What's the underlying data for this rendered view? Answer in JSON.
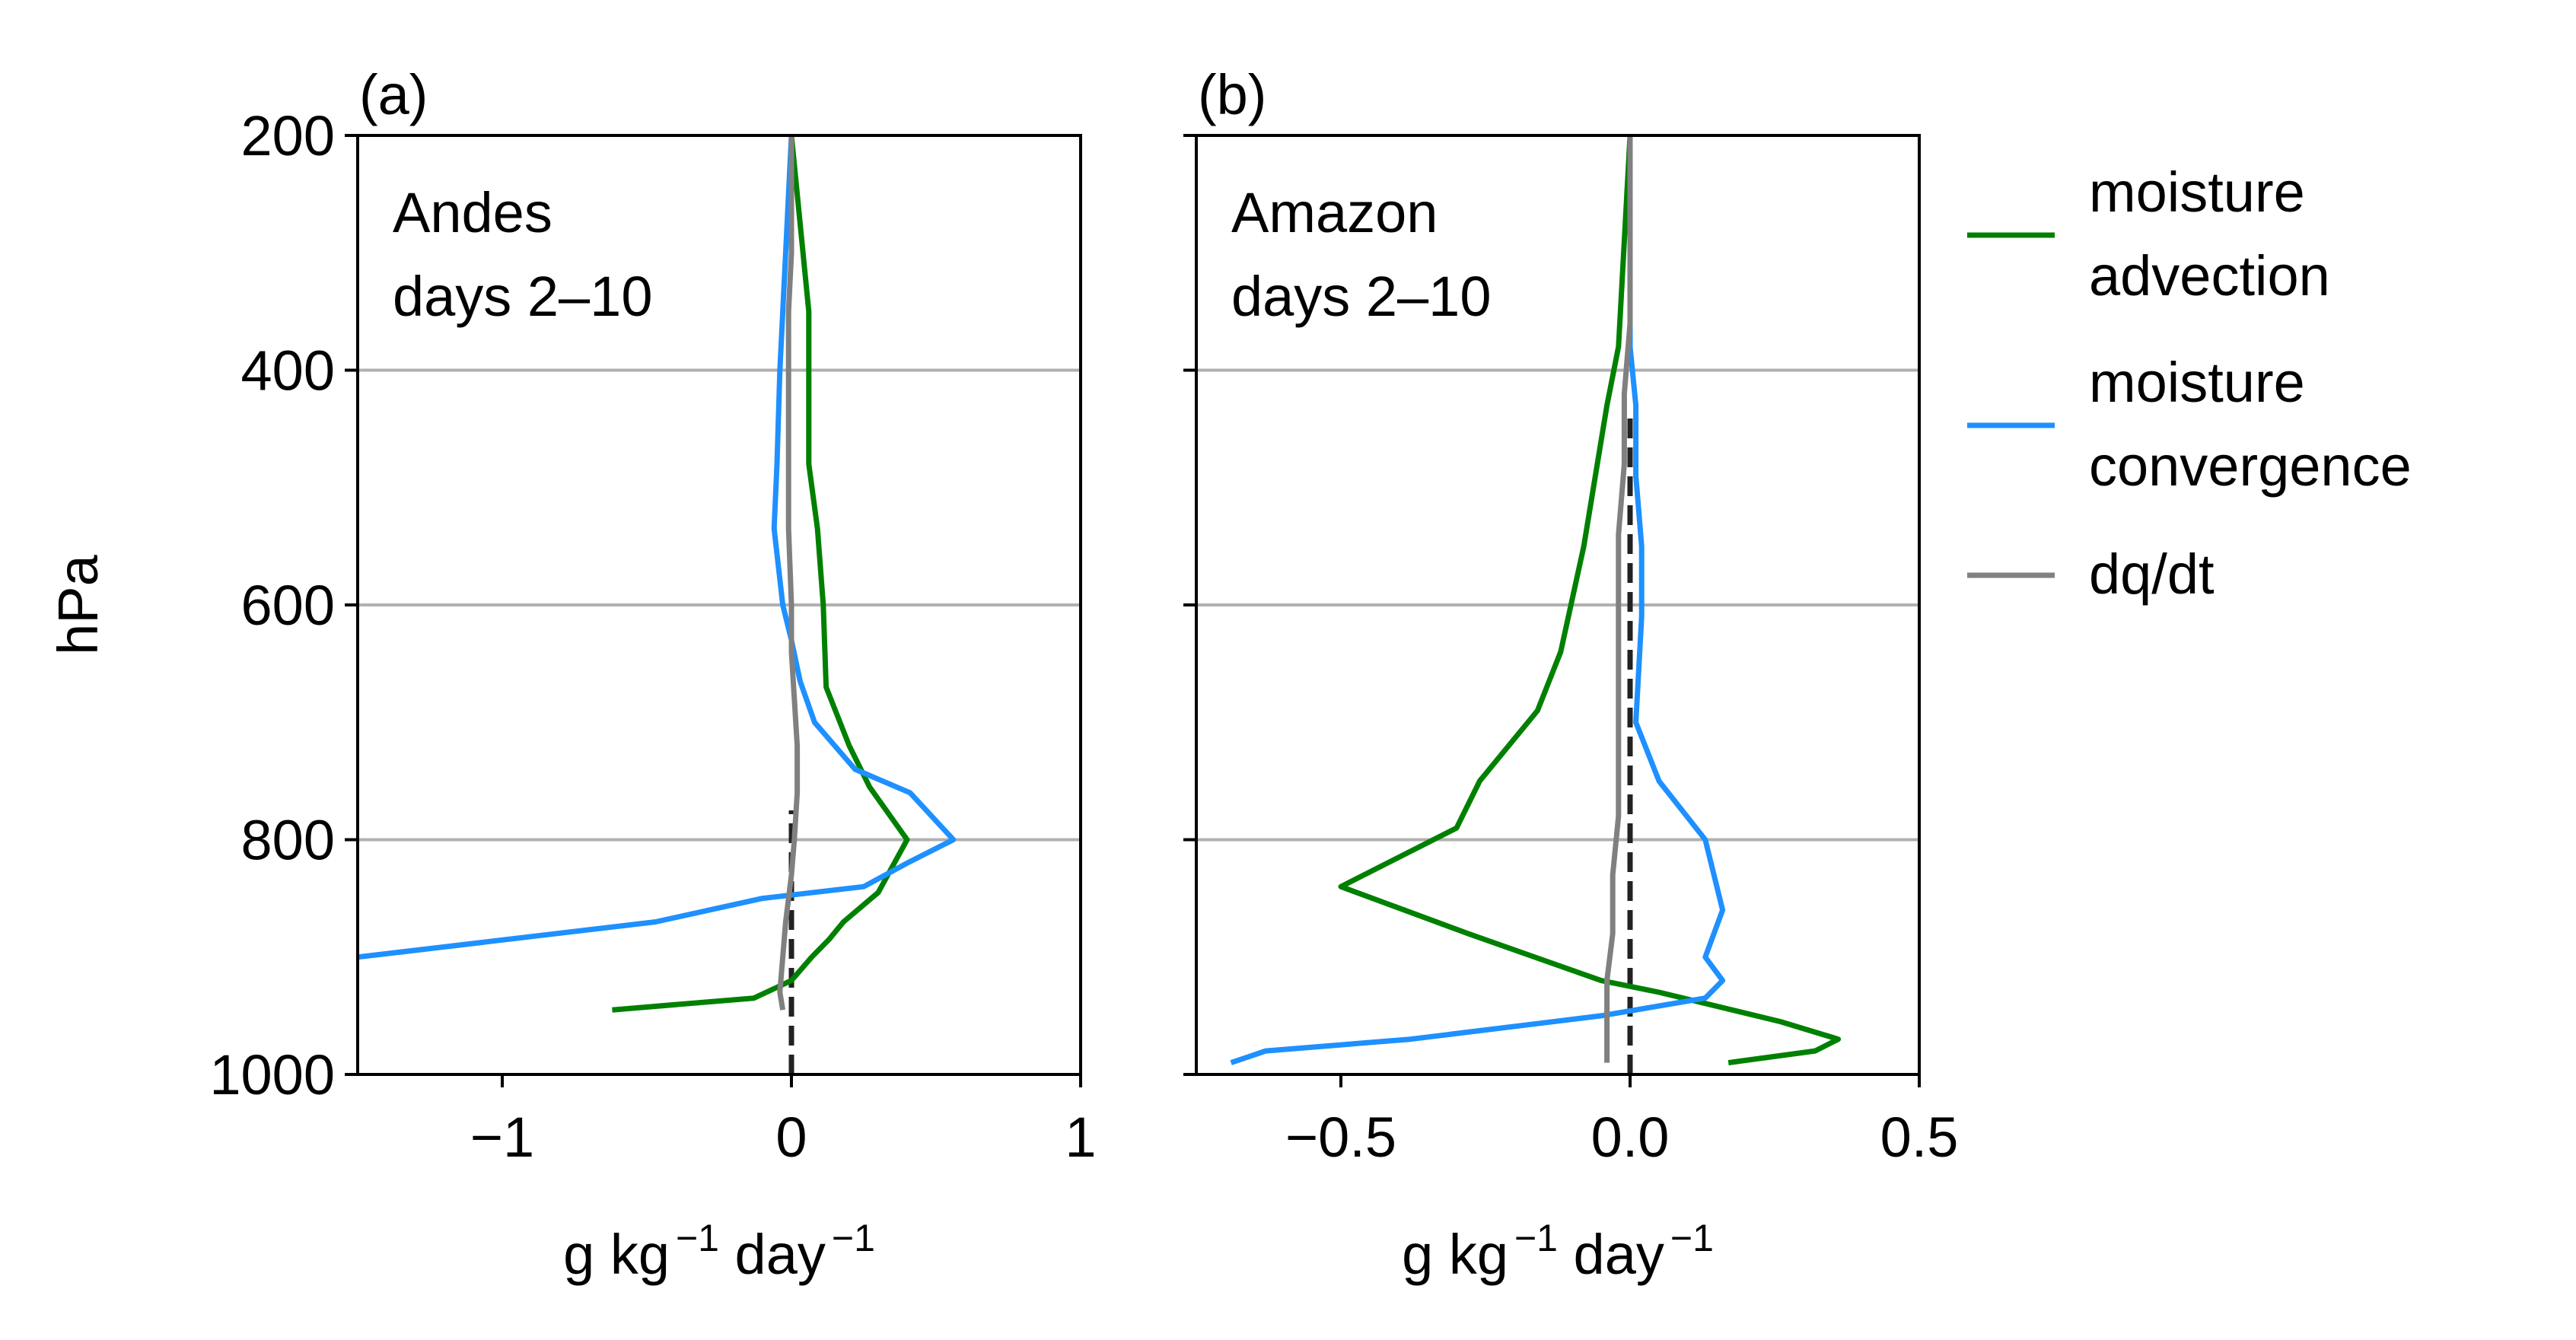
{
  "figure": {
    "legend": {
      "placement": "right",
      "entries": [
        {
          "lines": [
            "moisture",
            "advection"
          ],
          "color": "#008000"
        },
        {
          "lines": [
            "moisture",
            "convergence"
          ],
          "color": "#1e90ff"
        },
        {
          "lines": [
            "dq/dt"
          ],
          "color": "#808080"
        }
      ]
    }
  },
  "chart_data": [
    {
      "type": "line",
      "panel_label": "(a)",
      "annotation": [
        "Andes",
        "days 2–10"
      ],
      "xlabel": {
        "base": "g kg",
        "exp1": "−1",
        "mid": " day",
        "exp2": "−1"
      },
      "ylabel": "hPa",
      "xlim": [
        -1.5,
        1.0
      ],
      "ylim": [
        1000,
        200
      ],
      "y_inverted": true,
      "xticks": [
        -1,
        0,
        1
      ],
      "xtick_labels": [
        "−1",
        "0",
        "1"
      ],
      "yticks": [
        200,
        400,
        600,
        800,
        1000
      ],
      "ytick_labels": [
        "200",
        "400",
        "600",
        "800",
        "1000"
      ],
      "show_ytick_labels": true,
      "grid": "horizontal",
      "zero_line": {
        "x": 0,
        "from": 1000,
        "to": 775,
        "style": "dashed",
        "color": "#222222"
      },
      "series": [
        {
          "name": "moisture advection",
          "color": "#008000",
          "points": [
            [
              -0.62,
              945
            ],
            [
              -0.13,
              935
            ],
            [
              0.0,
              920
            ],
            [
              0.07,
              900
            ],
            [
              0.13,
              885
            ],
            [
              0.18,
              870
            ],
            [
              0.3,
              845
            ],
            [
              0.4,
              800
            ],
            [
              0.27,
              755
            ],
            [
              0.2,
              720
            ],
            [
              0.12,
              670
            ],
            [
              0.11,
              600
            ],
            [
              0.09,
              535
            ],
            [
              0.06,
              480
            ],
            [
              0.06,
              400
            ],
            [
              0.06,
              350
            ],
            [
              0.04,
              300
            ],
            [
              0.02,
              250
            ],
            [
              0.0,
              200
            ]
          ]
        },
        {
          "name": "moisture convergence",
          "color": "#1e90ff",
          "points": [
            [
              -1.5,
              900
            ],
            [
              -0.47,
              870
            ],
            [
              -0.1,
              850
            ],
            [
              0.25,
              840
            ],
            [
              0.4,
              820
            ],
            [
              0.56,
              800
            ],
            [
              0.41,
              760
            ],
            [
              0.22,
              740
            ],
            [
              0.08,
              700
            ],
            [
              0.03,
              665
            ],
            [
              0.0,
              630
            ],
            [
              -0.03,
              600
            ],
            [
              -0.06,
              535
            ],
            [
              -0.05,
              480
            ],
            [
              -0.04,
              400
            ],
            [
              -0.03,
              350
            ],
            [
              -0.02,
              300
            ],
            [
              -0.01,
              250
            ],
            [
              0.0,
              200
            ]
          ]
        },
        {
          "name": "dq/dt",
          "color": "#808080",
          "points": [
            [
              -0.03,
              945
            ],
            [
              -0.04,
              930
            ],
            [
              -0.03,
              900
            ],
            [
              -0.02,
              870
            ],
            [
              0.0,
              830
            ],
            [
              0.01,
              800
            ],
            [
              0.02,
              760
            ],
            [
              0.02,
              720
            ],
            [
              0.01,
              680
            ],
            [
              0.0,
              640
            ],
            [
              0.0,
              600
            ],
            [
              -0.01,
              535
            ],
            [
              -0.01,
              480
            ],
            [
              -0.01,
              400
            ],
            [
              -0.01,
              350
            ],
            [
              0.0,
              300
            ],
            [
              0.0,
              250
            ],
            [
              0.0,
              200
            ]
          ]
        }
      ]
    },
    {
      "type": "line",
      "panel_label": "(b)",
      "annotation": [
        "Amazon",
        "days 2–10"
      ],
      "xlabel": {
        "base": "g kg",
        "exp1": "−1",
        "mid": " day",
        "exp2": "−1"
      },
      "ylabel": "",
      "xlim": [
        -0.75,
        0.5
      ],
      "ylim": [
        1000,
        200
      ],
      "y_inverted": true,
      "xticks": [
        -0.5,
        0.0,
        0.5
      ],
      "xtick_labels": [
        "−0.5",
        "0.0",
        "0.5"
      ],
      "yticks": [
        200,
        400,
        600,
        800,
        1000
      ],
      "ytick_labels": [],
      "show_ytick_labels": false,
      "grid": "horizontal",
      "zero_line": {
        "x": 0,
        "from": 1000,
        "to": 440,
        "style": "dashed",
        "color": "#222222"
      },
      "series": [
        {
          "name": "moisture advection",
          "color": "#008000",
          "points": [
            [
              0.17,
              990
            ],
            [
              0.32,
              980
            ],
            [
              0.36,
              970
            ],
            [
              0.26,
              955
            ],
            [
              0.05,
              930
            ],
            [
              -0.05,
              920
            ],
            [
              -0.28,
              880
            ],
            [
              -0.5,
              840
            ],
            [
              -0.3,
              790
            ],
            [
              -0.26,
              750
            ],
            [
              -0.16,
              690
            ],
            [
              -0.12,
              640
            ],
            [
              -0.08,
              550
            ],
            [
              -0.06,
              490
            ],
            [
              -0.04,
              430
            ],
            [
              -0.02,
              380
            ],
            [
              0.0,
              200
            ]
          ]
        },
        {
          "name": "moisture convergence",
          "color": "#1e90ff",
          "points": [
            [
              -0.69,
              990
            ],
            [
              -0.63,
              980
            ],
            [
              -0.38,
              970
            ],
            [
              -0.05,
              950
            ],
            [
              0.13,
              935
            ],
            [
              0.16,
              920
            ],
            [
              0.13,
              900
            ],
            [
              0.16,
              860
            ],
            [
              0.13,
              800
            ],
            [
              0.05,
              750
            ],
            [
              0.01,
              700
            ],
            [
              0.02,
              610
            ],
            [
              0.02,
              550
            ],
            [
              0.01,
              490
            ],
            [
              0.01,
              430
            ],
            [
              0.0,
              380
            ],
            [
              0.0,
              200
            ]
          ]
        },
        {
          "name": "dq/dt",
          "color": "#808080",
          "points": [
            [
              -0.04,
              990
            ],
            [
              -0.04,
              950
            ],
            [
              -0.04,
              920
            ],
            [
              -0.03,
              880
            ],
            [
              -0.03,
              830
            ],
            [
              -0.02,
              780
            ],
            [
              -0.02,
              720
            ],
            [
              -0.02,
              660
            ],
            [
              -0.02,
              600
            ],
            [
              -0.02,
              540
            ],
            [
              -0.01,
              480
            ],
            [
              -0.01,
              420
            ],
            [
              0.0,
              360
            ],
            [
              0.0,
              300
            ],
            [
              0.0,
              250
            ],
            [
              0.0,
              200
            ]
          ]
        }
      ]
    }
  ]
}
